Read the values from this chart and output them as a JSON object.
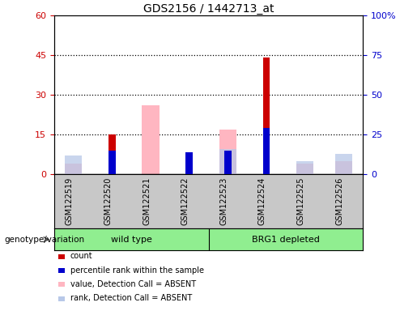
{
  "title": "GDS2156 / 1442713_at",
  "samples": [
    "GSM122519",
    "GSM122520",
    "GSM122521",
    "GSM122522",
    "GSM122523",
    "GSM122524",
    "GSM122525",
    "GSM122526"
  ],
  "left_ylim": [
    0,
    60
  ],
  "right_ylim": [
    0,
    100
  ],
  "left_yticks": [
    0,
    15,
    30,
    45,
    60
  ],
  "right_yticks": [
    0,
    25,
    50,
    75,
    100
  ],
  "right_yticklabels": [
    "0",
    "25",
    "50",
    "75",
    "100%"
  ],
  "dotted_lines": [
    15,
    30,
    45
  ],
  "red_bars": [
    0,
    15,
    0,
    8,
    0,
    44,
    0,
    0
  ],
  "blue_bars": [
    0,
    15,
    0,
    14,
    15,
    29,
    0,
    0
  ],
  "pink_bars": [
    4,
    0,
    26,
    0,
    17,
    0,
    4,
    5
  ],
  "lightblue_bars": [
    12,
    0,
    0,
    0,
    16,
    0,
    8,
    13
  ],
  "wild_type_indices": [
    0,
    1,
    2,
    3
  ],
  "brg1_indices": [
    4,
    5,
    6,
    7
  ],
  "group_label_wt": "wild type",
  "group_label_brg1": "BRG1 depleted",
  "group_color": "#90ee90",
  "gray_color": "#c8c8c8",
  "plot_bg": "#ffffff",
  "left_tick_color": "#cc0000",
  "right_tick_color": "#0000cc",
  "red_color": "#cc0000",
  "blue_color": "#0000cc",
  "pink_color": "#ffb6c1",
  "lightblue_color": "#b8c8e8",
  "title_fontsize": 10,
  "legend_items": [
    {
      "color": "#cc0000",
      "label": "count"
    },
    {
      "color": "#0000cc",
      "label": "percentile rank within the sample"
    },
    {
      "color": "#ffb6c1",
      "label": "value, Detection Call = ABSENT"
    },
    {
      "color": "#b8c8e8",
      "label": "rank, Detection Call = ABSENT"
    }
  ]
}
